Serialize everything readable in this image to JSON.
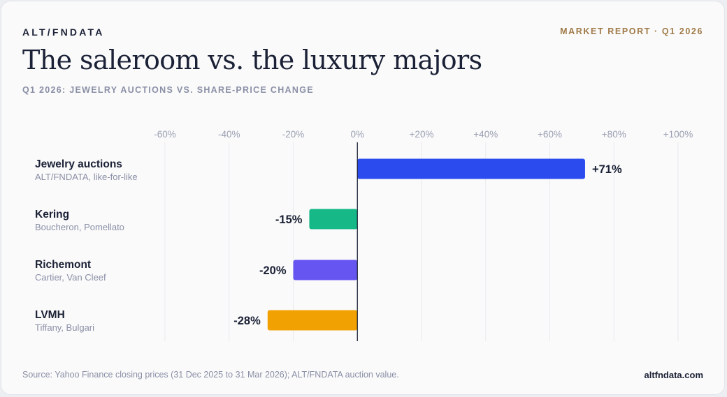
{
  "header": {
    "brand": "ALT/FNDATA",
    "report_label": "MARKET REPORT · Q1 2026",
    "title": "The saleroom vs. the luxury majors",
    "subtitle": "Q1 2026: JEWELRY AUCTIONS VS. SHARE-PRICE CHANGE"
  },
  "rows": [
    {
      "name": "Jewelry auctions",
      "sub": "ALT/FNDATA, like-for-like"
    },
    {
      "name": "Kering",
      "sub": "Boucheron, Pomellato"
    },
    {
      "name": "Richemont",
      "sub": "Cartier, Van Cleef"
    },
    {
      "name": "LVMH",
      "sub": "Tiffany, Bulgari"
    }
  ],
  "chart_data": {
    "type": "bar",
    "orientation": "horizontal",
    "categories": [
      "Jewelry auctions",
      "Kering",
      "Richemont",
      "LVMH"
    ],
    "values": [
      71,
      -15,
      -20,
      -28
    ],
    "value_labels": [
      "+71%",
      "-15%",
      "-20%",
      "-28%"
    ],
    "colors": [
      "#2b4bef",
      "#16b887",
      "#6655f0",
      "#f2a102"
    ],
    "xlim": [
      -60,
      100
    ],
    "ticks": [
      -60,
      -40,
      -20,
      0,
      20,
      40,
      60,
      80,
      100
    ],
    "tick_labels": [
      "-60%",
      "-40%",
      "-20%",
      "0%",
      "+20%",
      "+40%",
      "+60%",
      "+80%",
      "+100%"
    ],
    "grid": true
  },
  "footer": {
    "source": "Source: Yahoo Finance closing prices (31 Dec 2025 to 31 Mar 2026); ALT/FNDATA auction value.",
    "site": "altfndata.com"
  }
}
